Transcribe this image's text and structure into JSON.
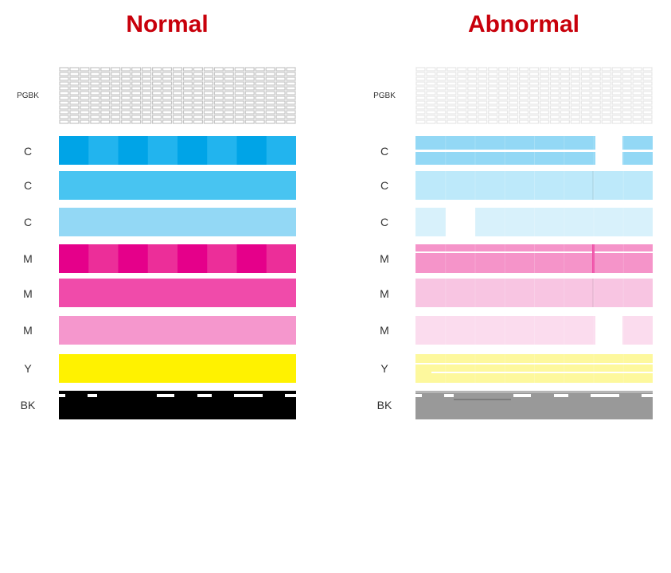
{
  "colors": {
    "title": "#c8000b",
    "label": "#333333"
  },
  "panels": [
    {
      "id": "normal",
      "title": "Normal",
      "rows": [
        {
          "label": "PGBK",
          "type": "grid",
          "ink": "#c4c4c4"
        },
        {
          "label": "C",
          "type": "blocks",
          "colors": [
            "#00a4e7",
            "#22b4ee"
          ]
        },
        {
          "label": "C",
          "type": "solid",
          "color": "#48c4f1"
        },
        {
          "label": "C",
          "type": "solid",
          "color": "#93d8f5"
        },
        {
          "label": "M",
          "type": "blocks",
          "colors": [
            "#e5008a",
            "#ec2e99"
          ]
        },
        {
          "label": "M",
          "type": "solid",
          "color": "#f04baa"
        },
        {
          "label": "M",
          "type": "solid",
          "color": "#f597cd"
        },
        {
          "label": "Y",
          "type": "solid",
          "color": "#fff200"
        },
        {
          "label": "BK",
          "type": "black",
          "color": "#000000"
        }
      ]
    },
    {
      "id": "abnormal",
      "title": "Abnormal",
      "rows": [
        {
          "label": "PGBK",
          "type": "grid",
          "ink": "#e6e6e6"
        },
        {
          "label": "C",
          "type": "faded",
          "color": "#93d8f5",
          "defect": "gap-right-lines"
        },
        {
          "label": "C",
          "type": "faded",
          "color": "#bde9fa",
          "defect": "vline"
        },
        {
          "label": "C",
          "type": "faded",
          "color": "#d8f1fb",
          "defect": "gap-left"
        },
        {
          "label": "M",
          "type": "faded",
          "color": "#f594c9",
          "defect": "lines-vline"
        },
        {
          "label": "M",
          "type": "faded",
          "color": "#f8c5e2",
          "defect": "vline"
        },
        {
          "label": "M",
          "type": "faded",
          "color": "#fbdcee",
          "defect": "gap-right"
        },
        {
          "label": "Y",
          "type": "faded",
          "color": "#fdf89d",
          "defect": "lines"
        },
        {
          "label": "BK",
          "type": "grey",
          "color": "#999999"
        }
      ]
    }
  ]
}
